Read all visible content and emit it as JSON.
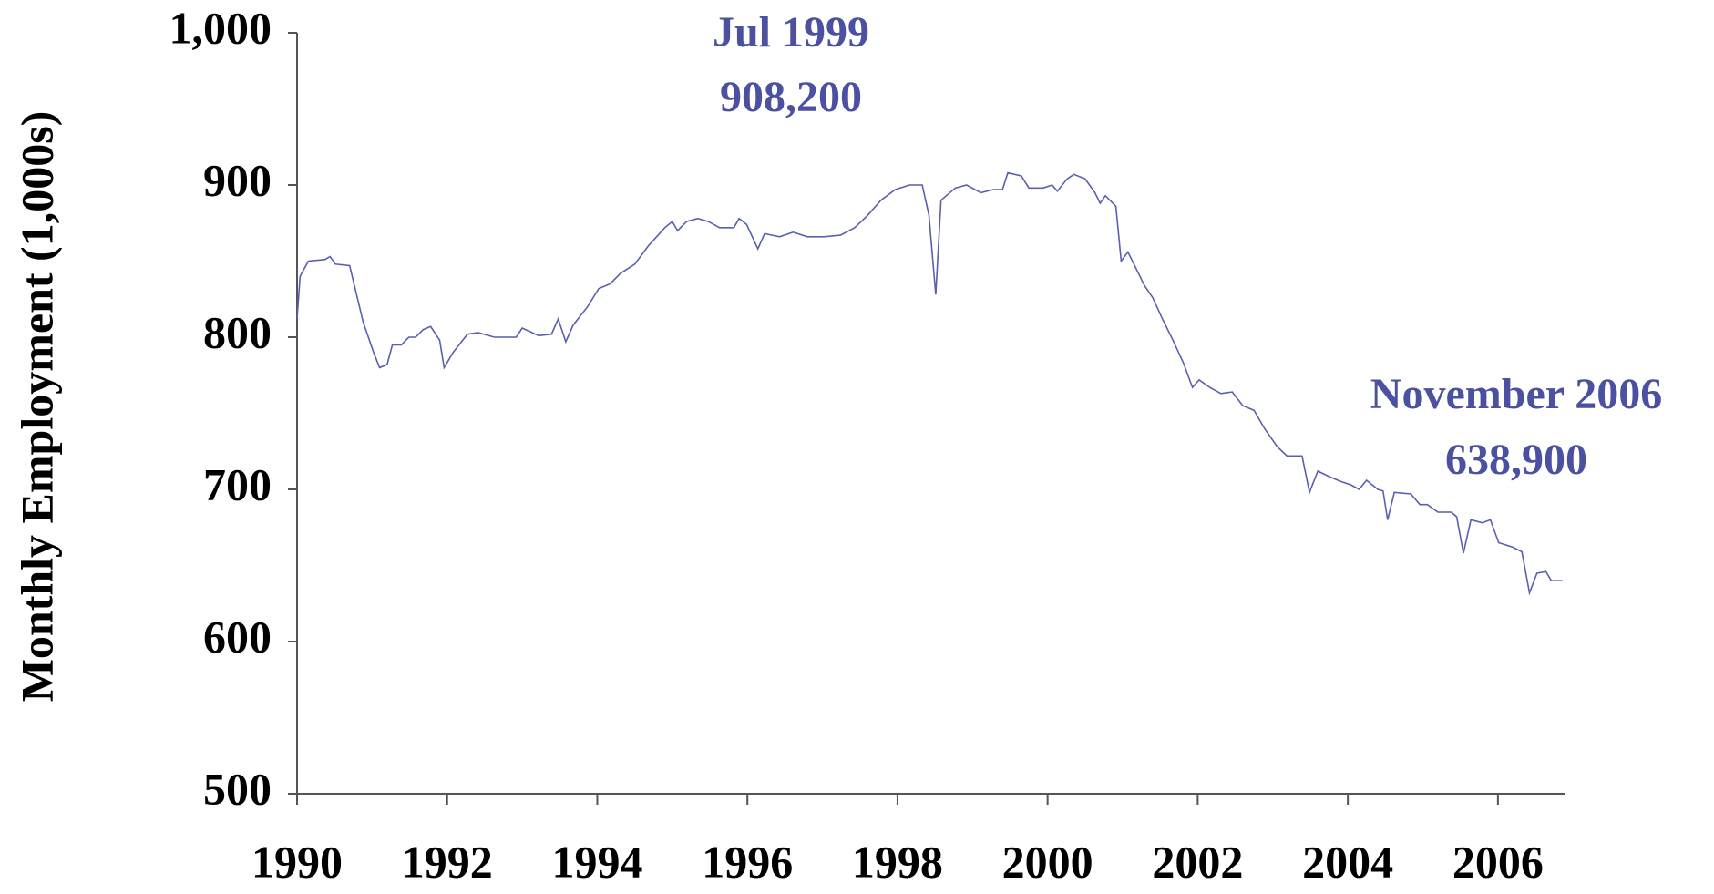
{
  "chart_data": {
    "type": "line",
    "y_label": "Monthly Employment (1,000s)",
    "annotations": [
      "Jul 1999",
      "908,200",
      "November 2006",
      "638,900"
    ],
    "xlim": [
      1990,
      2006.9
    ],
    "xticks": [
      1990,
      1992,
      1994,
      1996,
      1998,
      2000,
      2002,
      2004,
      2006
    ],
    "ylim": [
      500,
      1000
    ],
    "yticks": [
      500,
      600,
      700,
      800,
      900,
      {
        "value": 1000,
        "label": "1,000"
      }
    ],
    "grid": false,
    "series": [
      {
        "color": "#5a5fb0",
        "x": [
          1990.0,
          1990.04,
          1990.15,
          1990.37,
          1990.44,
          1990.51,
          1990.7,
          1990.88,
          1991.02,
          1991.1,
          1991.2,
          1991.27,
          1991.39,
          1991.49,
          1991.58,
          1991.68,
          1991.78,
          1991.9,
          1991.96,
          1992.08,
          1992.27,
          1992.41,
          1992.63,
          1992.92,
          1993.0,
          1993.22,
          1993.39,
          1993.48,
          1993.58,
          1993.68,
          1993.87,
          1994.02,
          1994.17,
          1994.31,
          1994.5,
          1994.68,
          1994.9,
          1995.0,
          1995.07,
          1995.19,
          1995.34,
          1995.48,
          1995.63,
          1995.82,
          1995.89,
          1995.99,
          1996.14,
          1996.23,
          1996.43,
          1996.61,
          1996.8,
          1997.02,
          1997.24,
          1997.43,
          1997.6,
          1997.78,
          1997.97,
          1998.16,
          1998.33,
          1998.42,
          1998.51,
          1998.58,
          1998.77,
          1998.92,
          1999.11,
          1999.28,
          1999.4,
          1999.47,
          1999.65,
          1999.75,
          1999.94,
          2000.06,
          2000.13,
          2000.26,
          2000.35,
          2000.5,
          2000.63,
          2000.7,
          2000.77,
          2000.91,
          2000.98,
          2001.07,
          2001.15,
          2001.29,
          2001.4,
          2001.52,
          2001.67,
          2001.81,
          2001.93,
          2002.02,
          2002.16,
          2002.31,
          2002.46,
          2002.6,
          2002.75,
          2002.89,
          2003.06,
          2003.19,
          2003.39,
          2003.49,
          2003.6,
          2003.77,
          2003.92,
          2004.04,
          2004.15,
          2004.25,
          2004.4,
          2004.47,
          2004.53,
          2004.62,
          2004.84,
          2004.96,
          2005.06,
          2005.2,
          2005.38,
          2005.45,
          2005.54,
          2005.64,
          2005.79,
          2005.9,
          2006.01,
          2006.2,
          2006.32,
          2006.42,
          2006.52,
          2006.64,
          2006.71,
          2006.86
        ],
        "values": [
          812,
          840,
          850,
          851,
          853,
          848,
          847,
          810,
          790,
          780,
          782,
          795,
          795,
          800,
          800,
          805,
          807,
          798,
          780,
          790,
          802,
          803,
          800,
          800,
          806,
          801,
          802,
          812,
          797,
          808,
          820,
          832,
          835,
          842,
          848,
          860,
          872,
          876,
          870,
          876,
          878,
          876,
          872,
          872,
          878,
          874,
          858,
          868,
          866,
          869,
          866,
          866,
          867,
          872,
          880,
          890,
          897,
          900,
          900,
          880,
          828,
          890,
          898,
          900,
          895,
          897,
          897,
          908,
          906,
          898,
          898,
          900,
          896,
          904,
          907,
          904,
          895,
          888,
          893,
          886,
          850,
          856,
          848,
          834,
          826,
          813,
          798,
          783,
          767,
          772,
          767,
          763,
          764,
          755,
          752,
          740,
          728,
          722,
          722,
          698,
          712,
          708,
          705,
          703,
          700,
          706,
          700,
          699,
          680,
          698,
          697,
          690,
          690,
          685,
          685,
          682,
          658,
          680,
          678,
          680,
          665,
          662,
          659,
          632,
          645,
          646,
          640,
          640
        ]
      }
    ]
  }
}
